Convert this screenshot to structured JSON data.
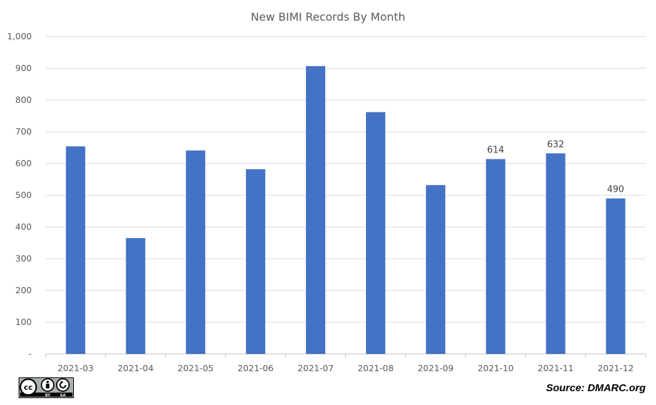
{
  "chart_data": {
    "type": "bar",
    "title": "New BIMI Records By Month",
    "xlabel": "",
    "ylabel": "",
    "categories": [
      "2021-03",
      "2021-04",
      "2021-05",
      "2021-06",
      "2021-07",
      "2021-08",
      "2021-09",
      "2021-10",
      "2021-11",
      "2021-12"
    ],
    "values": [
      654,
      365,
      641,
      582,
      907,
      762,
      532,
      614,
      632,
      490
    ],
    "data_labels": [
      "",
      "",
      "",
      "",
      "",
      "",
      "",
      "614",
      "632",
      "490"
    ],
    "ylim": [
      0,
      1000
    ],
    "yticks": [
      0,
      100,
      200,
      300,
      400,
      500,
      600,
      700,
      800,
      900,
      1000
    ],
    "ytick_labels": [
      "-",
      "100",
      "200",
      "300",
      "400",
      "500",
      "600",
      "700",
      "800",
      "900",
      "1,000"
    ],
    "grid": true,
    "bar_color": "#4472C4"
  },
  "footer": {
    "source": "Source: DMARC.org",
    "license_by": "BY",
    "license_sa": "SA"
  }
}
